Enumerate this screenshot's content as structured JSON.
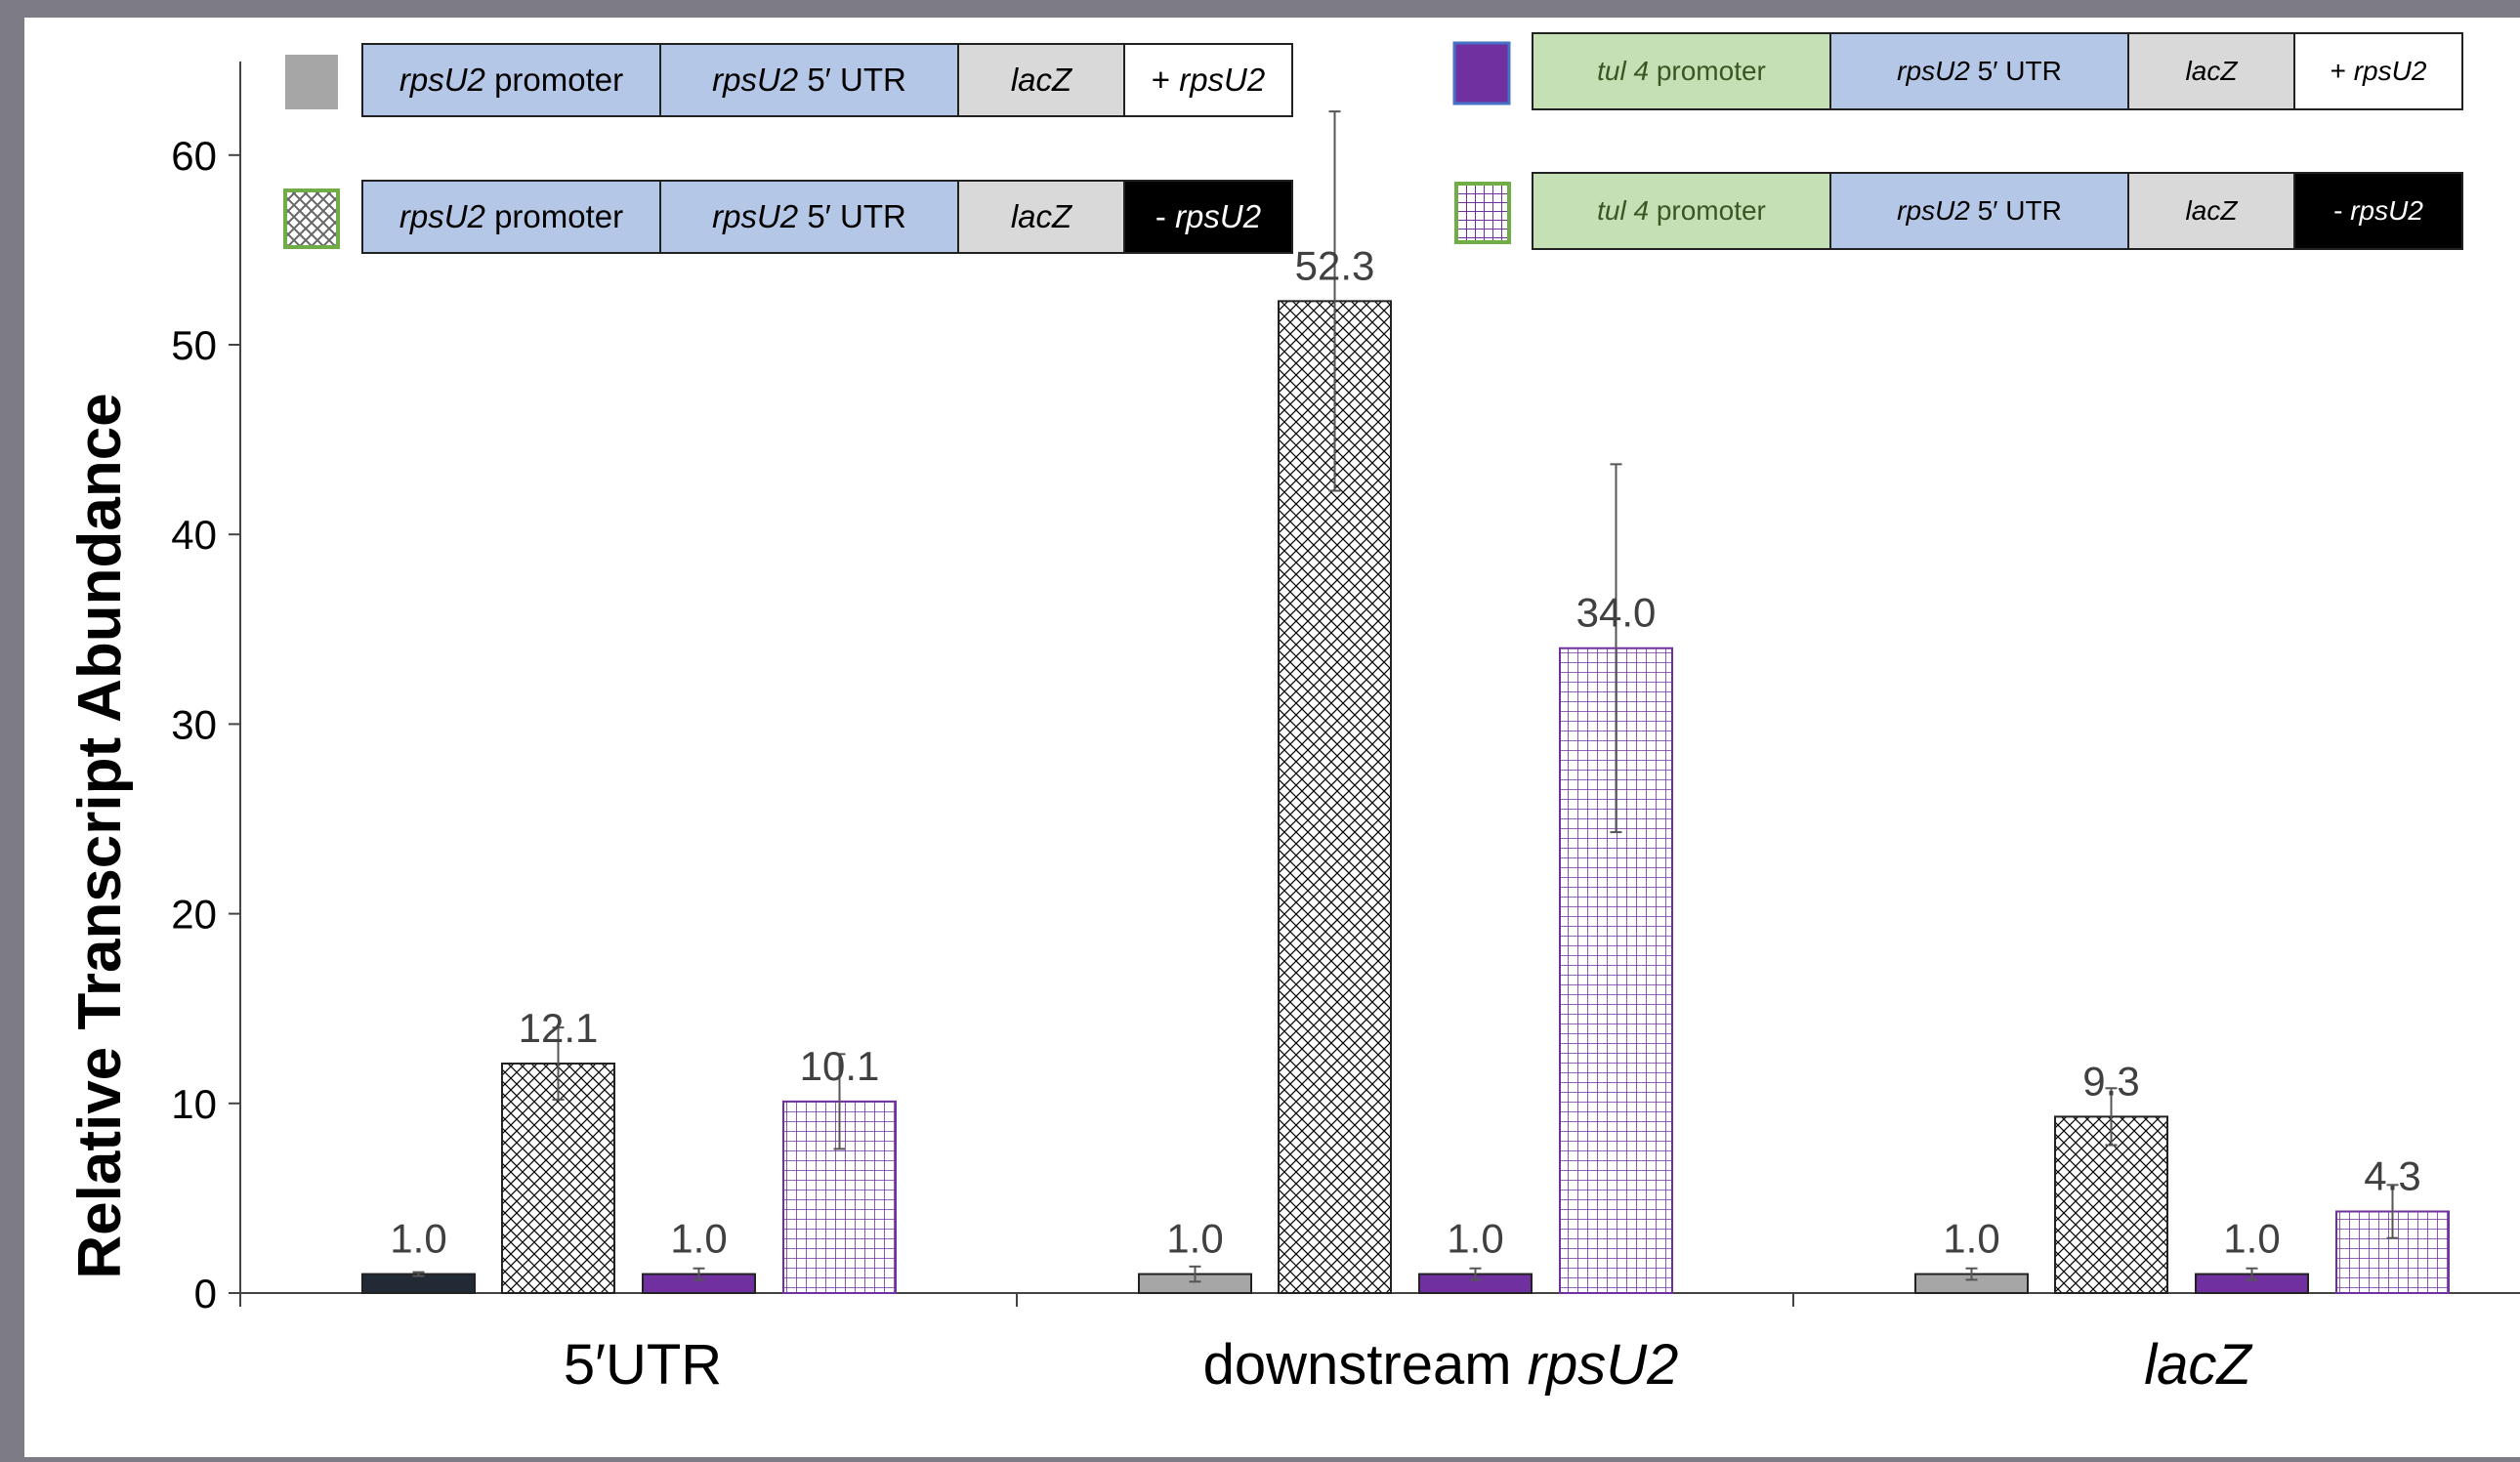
{
  "colors": {
    "bar_gray": "#a6a6a6",
    "bar_dark": "#222a35",
    "bar_purple": "#7030a0",
    "crosshatch_line": "#000000",
    "grid_pattern_line": "#7030a0",
    "seg_blue": "#b4c7e7",
    "seg_gray": "#d9d9d9",
    "seg_green": "#c5e0b4",
    "seg_black": "#000000",
    "seg_white": "#ffffff"
  },
  "legend": [
    {
      "id": "gray",
      "segments": [
        {
          "gene": "rpsU2",
          "text": " promoter",
          "color": "seg_blue"
        },
        {
          "gene": "rpsU2",
          "text": " 5′ UTR",
          "color": "seg_blue"
        },
        {
          "gene": "lacZ",
          "text": "",
          "color": "seg_gray"
        },
        {
          "gene": "rpsU2",
          "prefix": "+ ",
          "text": "",
          "color": "seg_white"
        }
      ]
    },
    {
      "id": "crosshatch",
      "segments": [
        {
          "gene": "rpsU2",
          "text": " promoter",
          "color": "seg_blue"
        },
        {
          "gene": "rpsU2",
          "text": " 5′ UTR",
          "color": "seg_blue"
        },
        {
          "gene": "lacZ",
          "text": "",
          "color": "seg_gray"
        },
        {
          "gene": "rpsU2",
          "prefix": "- ",
          "text": "",
          "color": "seg_black"
        }
      ]
    },
    {
      "id": "purple",
      "segments": [
        {
          "gene": "tul 4",
          "text": " promoter",
          "color": "seg_green"
        },
        {
          "gene": "rpsU2",
          "text": " 5′ UTR",
          "color": "seg_blue"
        },
        {
          "gene": "lacZ",
          "text": "",
          "color": "seg_gray"
        },
        {
          "gene": "rpsU2",
          "prefix": "+ ",
          "text": "",
          "color": "seg_white"
        }
      ]
    },
    {
      "id": "grid",
      "segments": [
        {
          "gene": "tul 4",
          "text": " promoter",
          "color": "seg_green"
        },
        {
          "gene": "rpsU2",
          "text": " 5′ UTR",
          "color": "seg_blue"
        },
        {
          "gene": "lacZ",
          "text": "",
          "color": "seg_gray"
        },
        {
          "gene": "rpsU2",
          "prefix": "- ",
          "text": "",
          "color": "seg_black"
        }
      ]
    }
  ],
  "chart_data": {
    "type": "bar",
    "title": "",
    "ylabel": "Relative Transcript Abundance",
    "xlabel": "",
    "ylim": [
      0,
      65
    ],
    "yticks": [
      0,
      10,
      20,
      30,
      40,
      50,
      60
    ],
    "grid": false,
    "legend_placement": "top",
    "categories": [
      {
        "label": "5′UTR",
        "italic_part": ""
      },
      {
        "label": "downstream ",
        "italic_part": "rpsU2"
      },
      {
        "label": "",
        "italic_part": "lacZ"
      }
    ],
    "series": [
      {
        "id": "gray",
        "values": [
          1.0,
          1.0,
          1.0
        ],
        "errors": [
          0.1,
          0.4,
          0.3
        ],
        "fills": [
          "bar_dark",
          "bar_gray",
          "bar_gray"
        ]
      },
      {
        "id": "crosshatch",
        "values": [
          12.1,
          52.3,
          9.3
        ],
        "errors": [
          1.9,
          10.0,
          1.5
        ]
      },
      {
        "id": "purple",
        "values": [
          1.0,
          1.0,
          1.0
        ],
        "errors": [
          0.3,
          0.3,
          0.3
        ]
      },
      {
        "id": "grid",
        "values": [
          10.1,
          34.0,
          4.3
        ],
        "errors": [
          2.5,
          9.7,
          1.4
        ]
      }
    ],
    "data_labels": [
      [
        "1.0",
        "1.0",
        "1.0"
      ],
      [
        "12.1",
        "52.3",
        "9.3"
      ],
      [
        "1.0",
        "1.0",
        "1.0"
      ],
      [
        "10.1",
        "34.0",
        "4.3"
      ]
    ]
  }
}
